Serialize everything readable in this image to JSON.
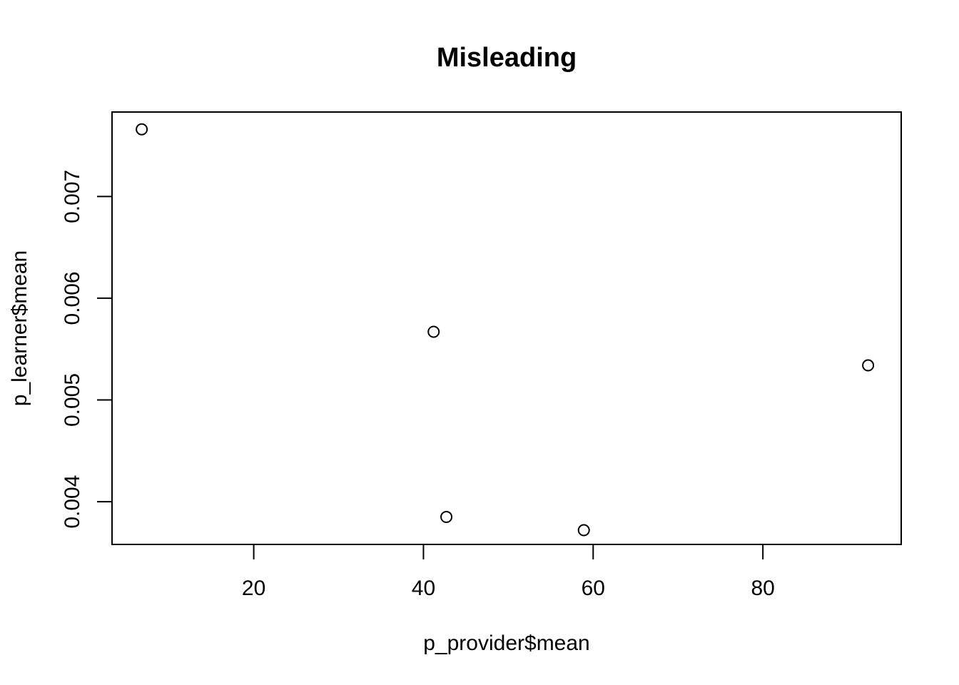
{
  "chart_data": {
    "type": "scatter",
    "title": "Misleading",
    "xlabel": "p_provider$mean",
    "ylabel": "p_learner$mean",
    "xlim": [
      3.3,
      96.3
    ],
    "ylim": [
      0.00358,
      0.00783
    ],
    "xticks": [
      {
        "value": 20,
        "label": "20"
      },
      {
        "value": 40,
        "label": "40"
      },
      {
        "value": 60,
        "label": "60"
      },
      {
        "value": 80,
        "label": "80"
      }
    ],
    "yticks": [
      {
        "value": 0.004,
        "label": "0.004"
      },
      {
        "value": 0.005,
        "label": "0.005"
      },
      {
        "value": 0.006,
        "label": "0.006"
      },
      {
        "value": 0.007,
        "label": "0.007"
      }
    ],
    "points": [
      {
        "x": 6.8,
        "y": 0.00766
      },
      {
        "x": 41.2,
        "y": 0.00567
      },
      {
        "x": 42.7,
        "y": 0.00385
      },
      {
        "x": 58.9,
        "y": 0.00372
      },
      {
        "x": 92.4,
        "y": 0.00534
      }
    ],
    "grid": false,
    "marker": "open-circle",
    "colors": {
      "marker_stroke": "#000000",
      "axis": "#000000",
      "background": "#ffffff"
    }
  }
}
